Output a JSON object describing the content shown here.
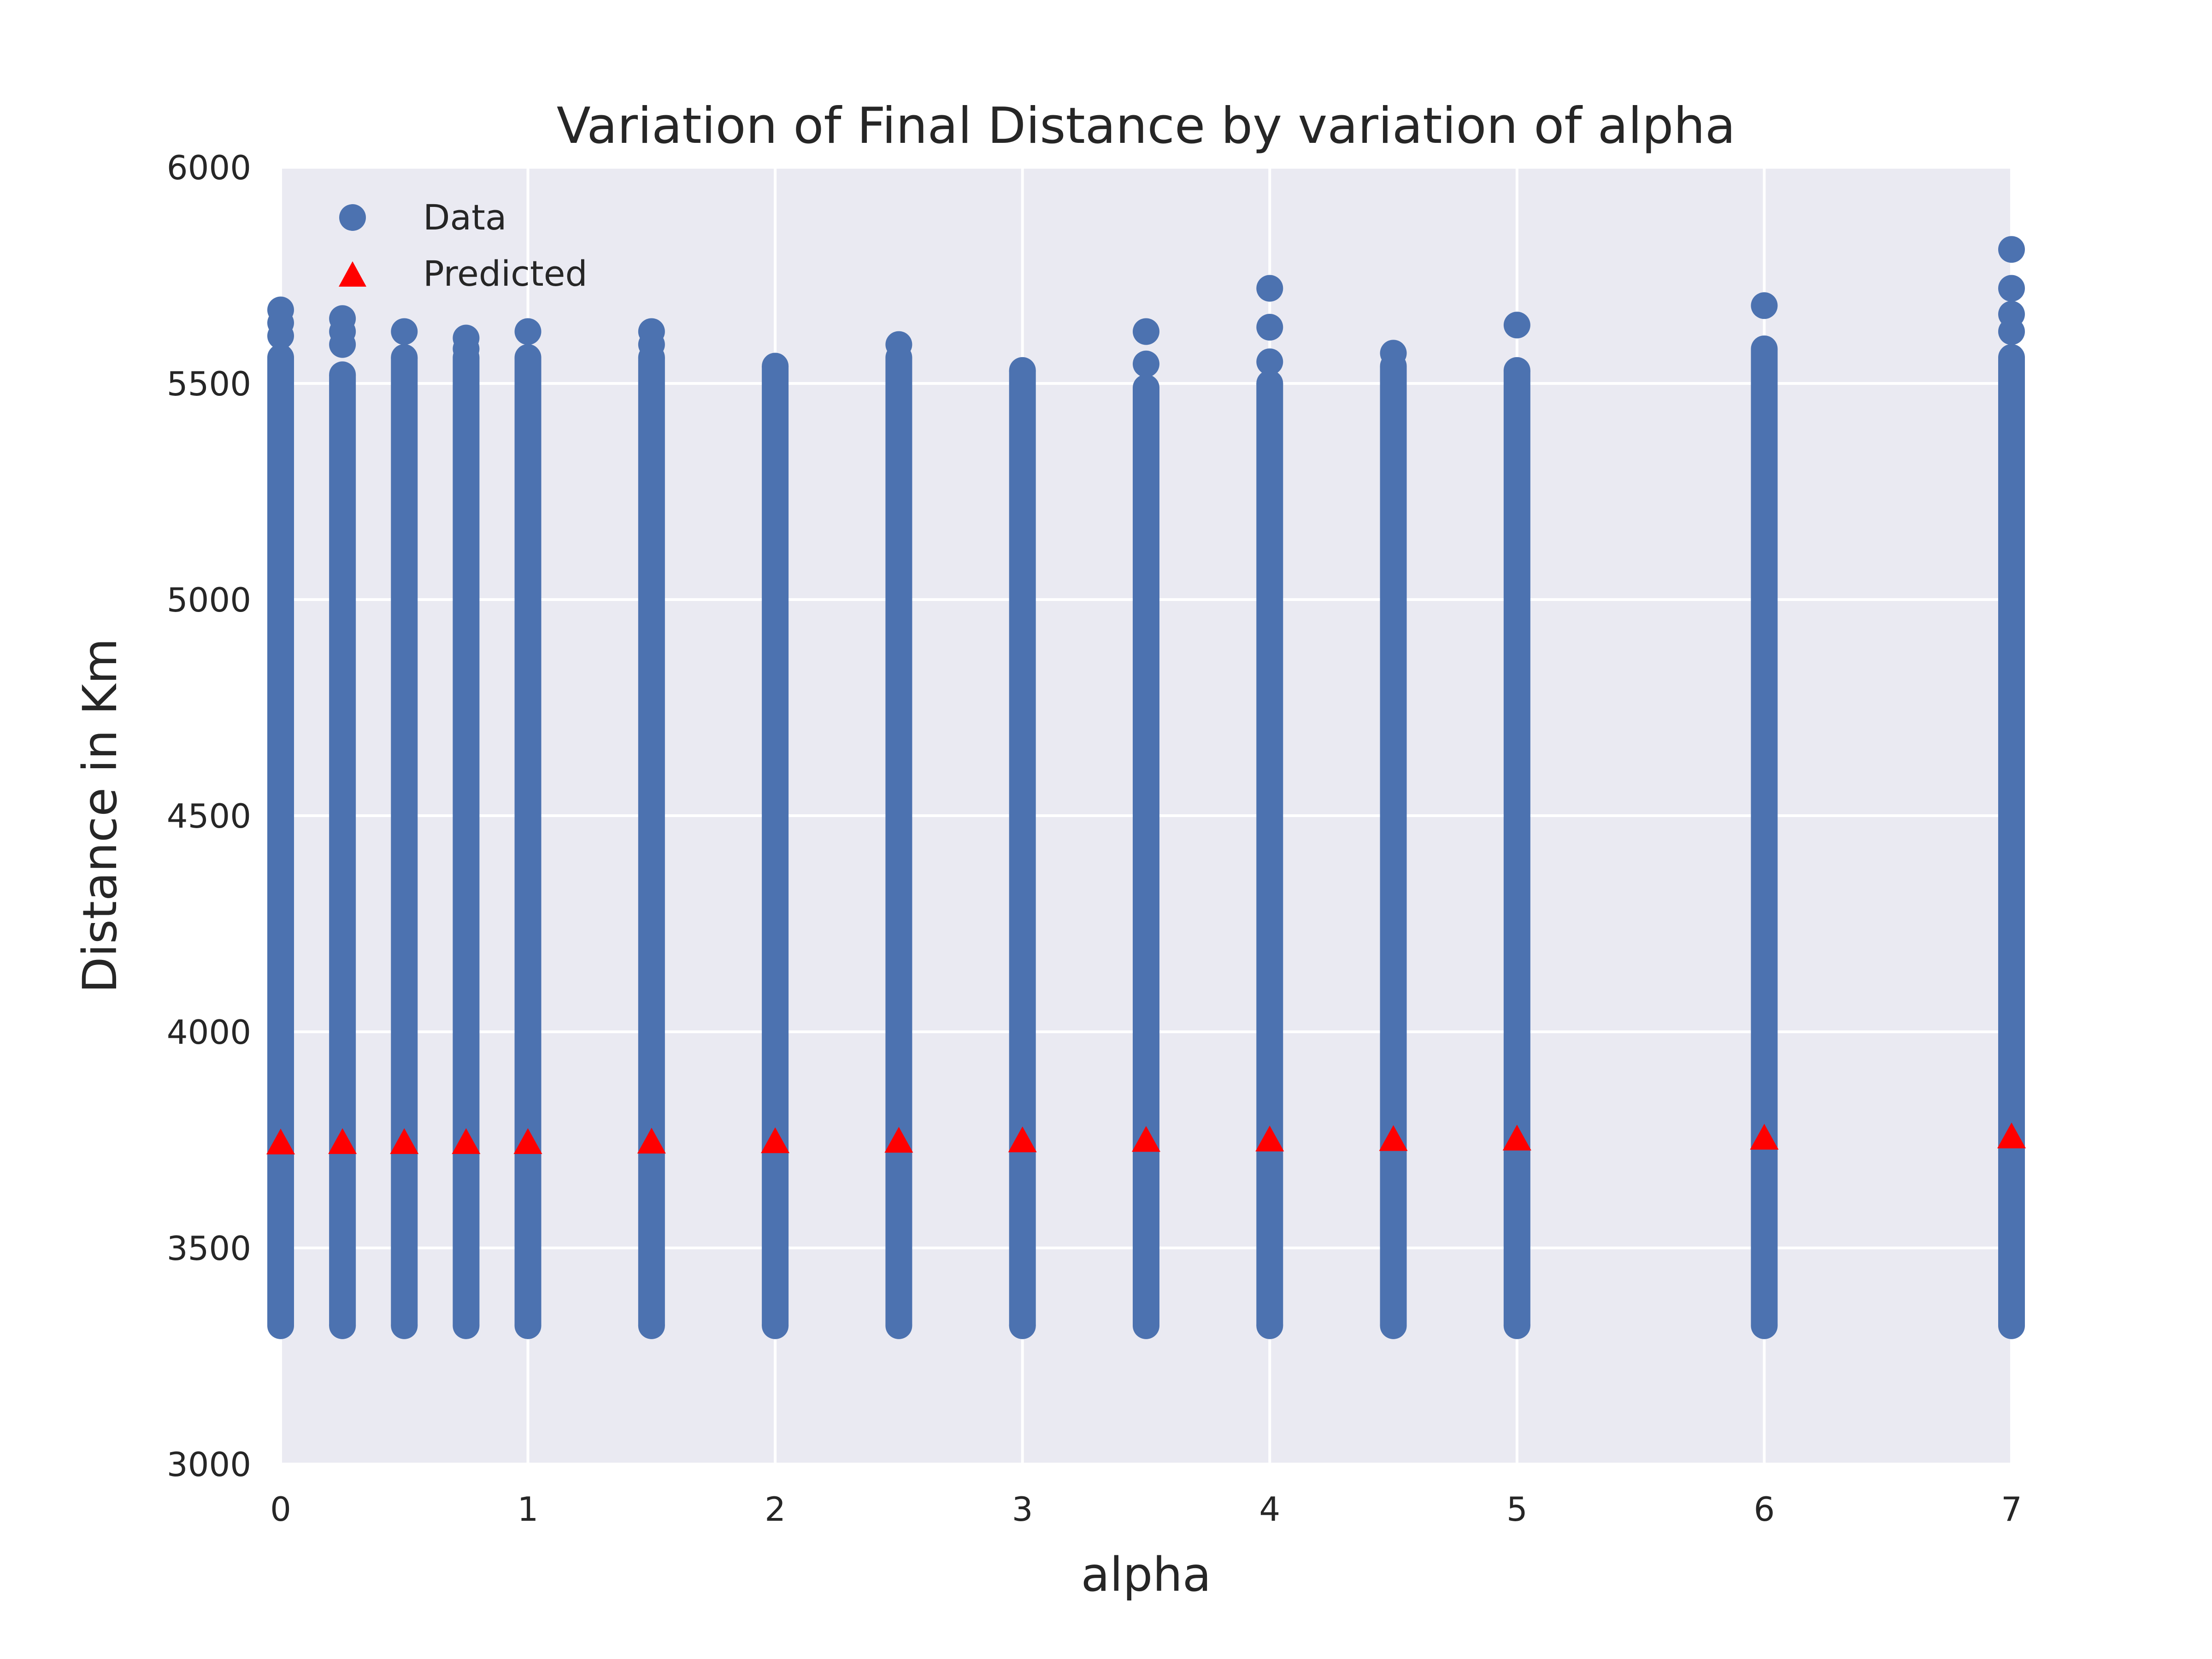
{
  "chart_data": {
    "type": "scatter",
    "title": "Variation of Final Distance by variation of alpha",
    "xlabel": "alpha",
    "ylabel": "Distance in Km",
    "xlim": [
      0,
      7
    ],
    "ylim": [
      3000,
      6000
    ],
    "xticks": [
      "0",
      "1",
      "2",
      "3",
      "4",
      "5",
      "6",
      "7"
    ],
    "yticks": [
      "3000",
      "3500",
      "4000",
      "4500",
      "5000",
      "5500",
      "6000"
    ],
    "grid": true,
    "legend_position": "top-left",
    "series": [
      {
        "name": "Data",
        "marker": "circle",
        "color": "#4c72b0",
        "columns": [
          {
            "x": 0,
            "min": 3320,
            "max": 5560,
            "outliers": [
              5610,
              5640,
              5670
            ]
          },
          {
            "x": 0.25,
            "min": 3320,
            "max": 5520,
            "outliers": [
              5590,
              5620,
              5650
            ]
          },
          {
            "x": 0.5,
            "min": 3320,
            "max": 5560,
            "outliers": [
              5620
            ]
          },
          {
            "x": 0.75,
            "min": 3320,
            "max": 5560,
            "outliers": [
              5580,
              5605
            ]
          },
          {
            "x": 1,
            "min": 3320,
            "max": 5560,
            "outliers": [
              5620
            ]
          },
          {
            "x": 1.5,
            "min": 3320,
            "max": 5560,
            "outliers": [
              5590,
              5620
            ]
          },
          {
            "x": 2,
            "min": 3320,
            "max": 5540,
            "outliers": []
          },
          {
            "x": 2.5,
            "min": 3320,
            "max": 5560,
            "outliers": [
              5590
            ]
          },
          {
            "x": 3,
            "min": 3320,
            "max": 5530,
            "outliers": []
          },
          {
            "x": 3.5,
            "min": 3320,
            "max": 5490,
            "outliers": [
              5545,
              5620
            ]
          },
          {
            "x": 4,
            "min": 3320,
            "max": 5500,
            "outliers": [
              5550,
              5630,
              5720
            ]
          },
          {
            "x": 4.5,
            "min": 3320,
            "max": 5540,
            "outliers": [
              5570
            ]
          },
          {
            "x": 5,
            "min": 3320,
            "max": 5530,
            "outliers": [
              5635
            ]
          },
          {
            "x": 6,
            "min": 3320,
            "max": 5580,
            "outliers": [
              5680
            ]
          },
          {
            "x": 7,
            "min": 3320,
            "max": 5560,
            "outliers": [
              5620,
              5660,
              5720,
              5810
            ]
          }
        ]
      },
      {
        "name": "Predicted",
        "marker": "triangle",
        "color": "#ff0000",
        "x": [
          0,
          0.25,
          0.5,
          0.75,
          1,
          1.5,
          2,
          2.5,
          3,
          3.5,
          4,
          4.5,
          5,
          6,
          7
        ],
        "y": [
          3742,
          3743,
          3743,
          3743,
          3743,
          3744,
          3745,
          3746,
          3747,
          3748,
          3749,
          3750,
          3751,
          3753,
          3756
        ]
      }
    ]
  }
}
